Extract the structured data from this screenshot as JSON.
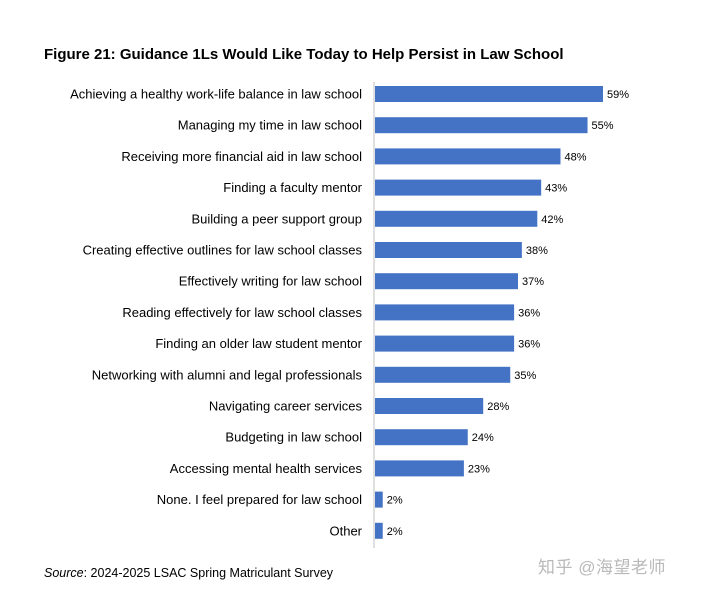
{
  "figure_title": "Figure 21: Guidance 1Ls Would Like Today to Help Persist in Law School",
  "source": {
    "label": "Source",
    "text": ": 2024-2025 LSAC Spring Matriculant Survey"
  },
  "watermark": "知乎 @海望老师",
  "colors": {
    "bar": "#4472C4",
    "axis": "#bfbfbf"
  },
  "chart_data": {
    "type": "bar",
    "orientation": "horizontal",
    "title": "Figure 21: Guidance 1Ls Would Like Today to Help Persist in Law School",
    "xlabel": "",
    "ylabel": "",
    "unit": "%",
    "grid": false,
    "categories": [
      "Achieving a healthy work-life balance in law school",
      "Managing my time in law school",
      "Receiving more financial aid in law school",
      "Finding a faculty mentor",
      "Building a peer support group",
      "Creating effective outlines for law school classes",
      "Effectively writing for law school",
      "Reading effectively for law school classes",
      "Finding an older law student mentor",
      "Networking with alumni and legal professionals",
      "Navigating career services",
      "Budgeting in law school",
      "Accessing mental health services",
      "None. I feel prepared for law school",
      "Other"
    ],
    "values": [
      59,
      55,
      48,
      43,
      42,
      38,
      37,
      36,
      36,
      35,
      28,
      24,
      23,
      2,
      2
    ],
    "data_labels": [
      "59%",
      "55%",
      "48%",
      "43%",
      "42%",
      "38%",
      "37%",
      "36%",
      "36%",
      "35%",
      "28%",
      "24%",
      "23%",
      "2%",
      "2%"
    ]
  }
}
